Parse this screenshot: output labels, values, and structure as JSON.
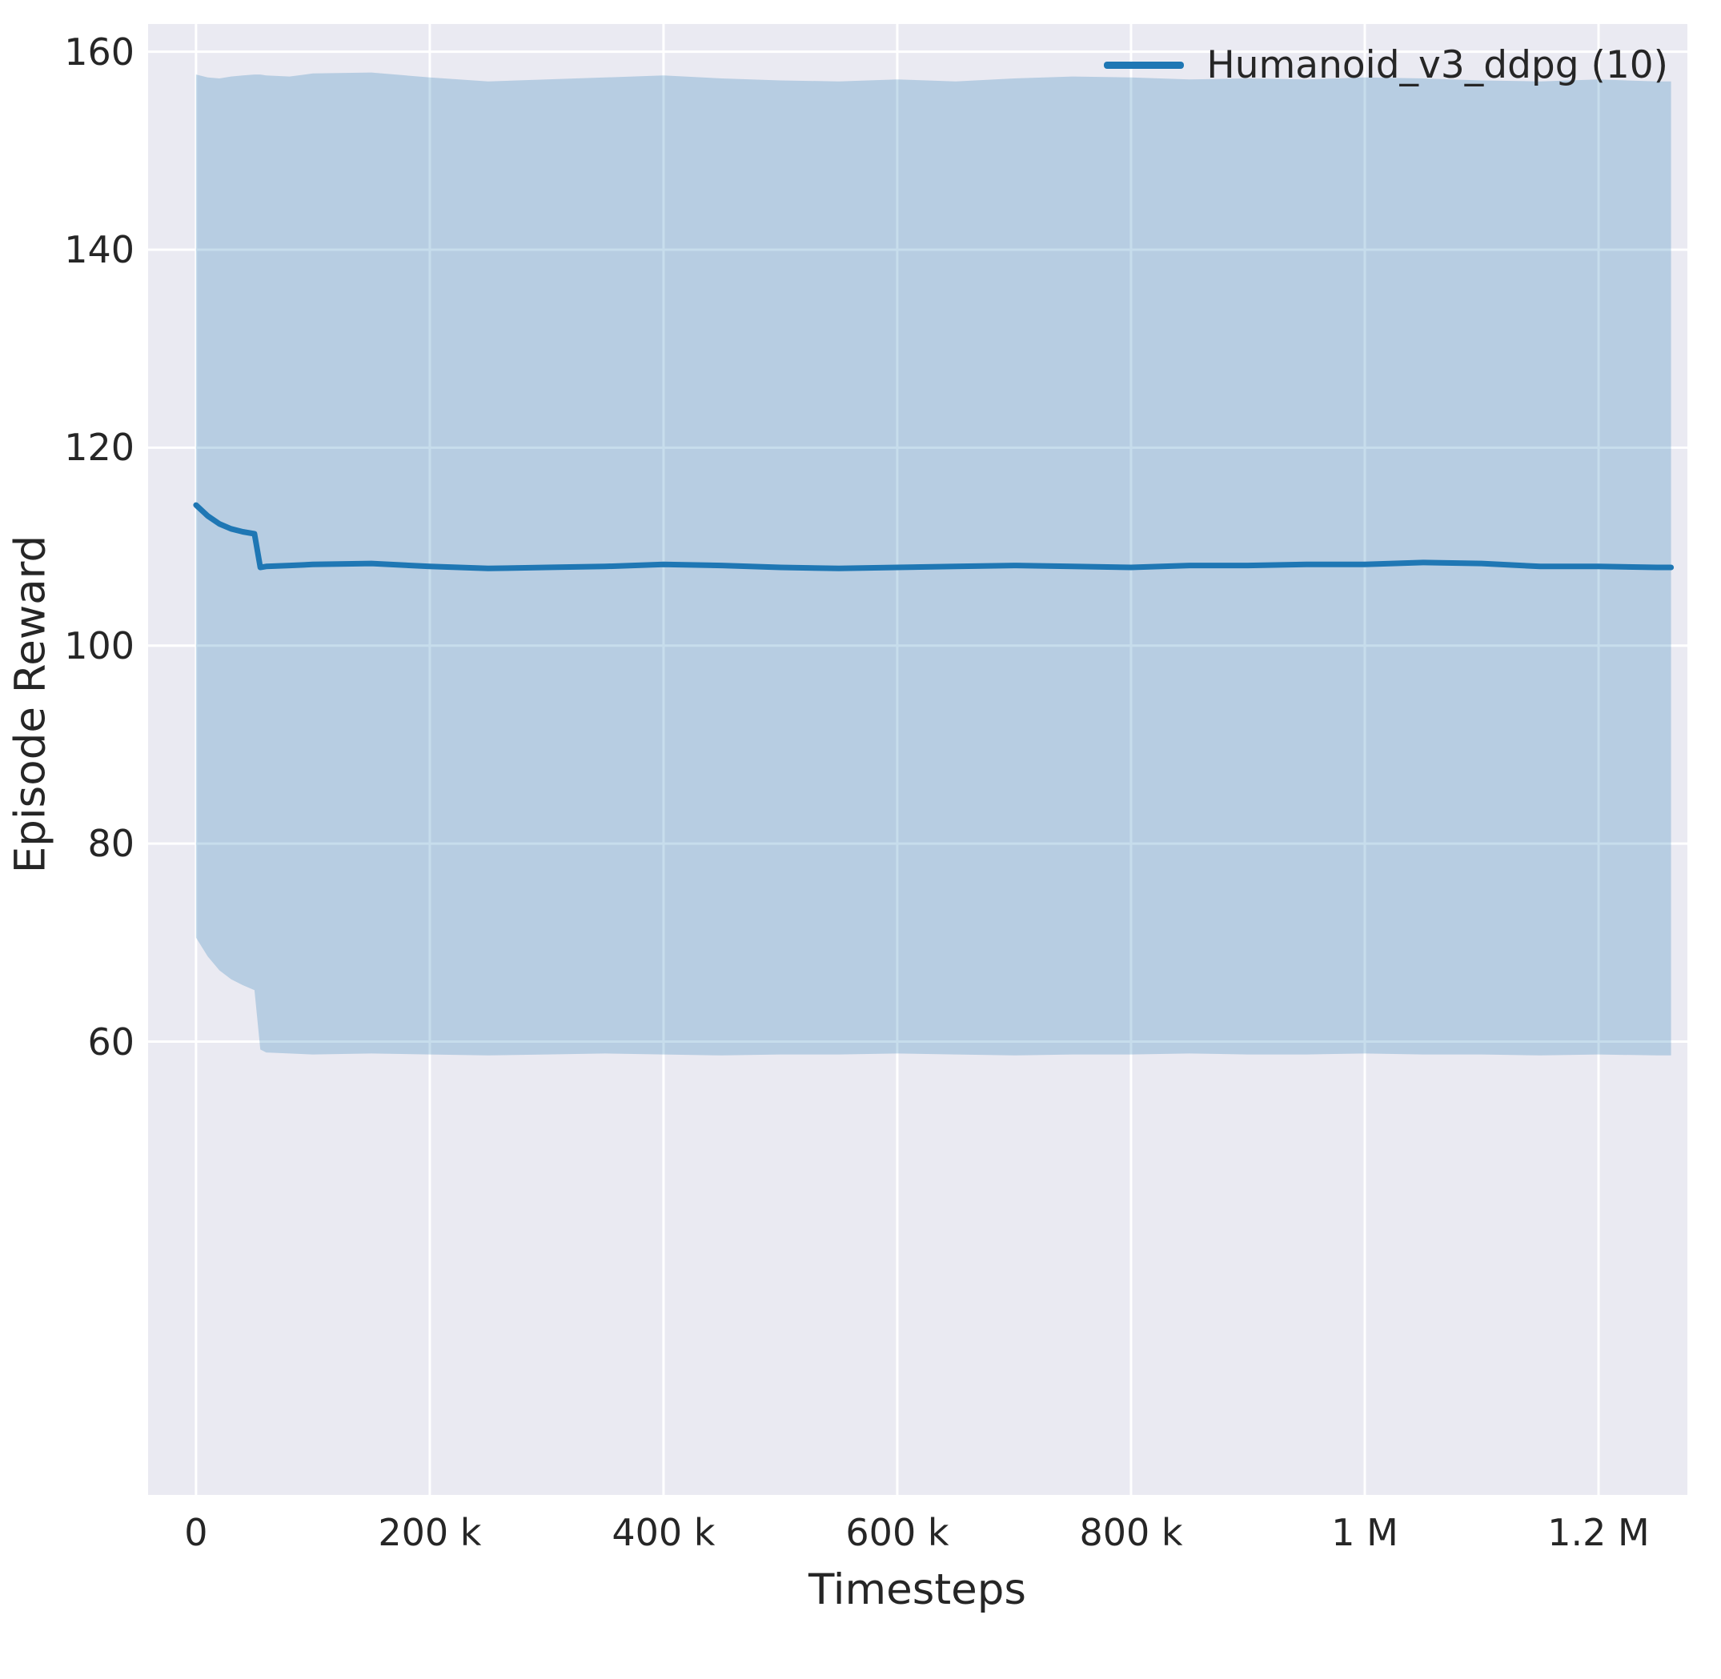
{
  "chart_data": {
    "type": "line",
    "title": "",
    "xlabel": "Timesteps",
    "ylabel": "Episode Reward",
    "grid": true,
    "legend_position": "upper right",
    "xlim": [
      -41000,
      1276000
    ],
    "ylim": [
      14.2,
      162.8
    ],
    "x_ticks": [
      {
        "value": 0,
        "label": "0"
      },
      {
        "value": 200000,
        "label": "200 k"
      },
      {
        "value": 400000,
        "label": "400 k"
      },
      {
        "value": 600000,
        "label": "600 k"
      },
      {
        "value": 800000,
        "label": "800 k"
      },
      {
        "value": 1000000,
        "label": "1 M"
      },
      {
        "value": 1200000,
        "label": "1.2 M"
      }
    ],
    "y_ticks": [
      {
        "value": 60,
        "label": "60"
      },
      {
        "value": 80,
        "label": "80"
      },
      {
        "value": 100,
        "label": "100"
      },
      {
        "value": 120,
        "label": "120"
      },
      {
        "value": 140,
        "label": "140"
      },
      {
        "value": 160,
        "label": "160"
      }
    ],
    "colors": {
      "line": "#1f77b4",
      "band": "#1f77b4",
      "band_opacity": 0.25,
      "plot_bg": "#eaeaf2",
      "grid": "#ffffff",
      "text": "#262626"
    },
    "series": [
      {
        "name": "Humanoid_v3_ddpg (10)",
        "color": "#1f77b4",
        "x": [
          0,
          10000,
          20000,
          30000,
          40000,
          50000,
          55000,
          60000,
          80000,
          100000,
          150000,
          200000,
          250000,
          300000,
          350000,
          400000,
          450000,
          500000,
          550000,
          600000,
          650000,
          700000,
          750000,
          800000,
          850000,
          900000,
          950000,
          1000000,
          1050000,
          1100000,
          1150000,
          1200000,
          1250000,
          1262000
        ],
        "mean": [
          114.2,
          113.1,
          112.3,
          111.8,
          111.5,
          111.3,
          107.9,
          108.0,
          108.1,
          108.2,
          108.3,
          108.0,
          107.8,
          107.9,
          108.0,
          108.2,
          108.1,
          107.9,
          107.8,
          107.9,
          108.0,
          108.1,
          108.0,
          107.9,
          108.1,
          108.1,
          108.2,
          108.2,
          108.4,
          108.3,
          108.0,
          108.0,
          107.9,
          107.9
        ],
        "band_upper": [
          157.7,
          157.4,
          157.3,
          157.5,
          157.6,
          157.7,
          157.7,
          157.6,
          157.5,
          157.8,
          157.9,
          157.4,
          157.0,
          157.2,
          157.4,
          157.6,
          157.3,
          157.1,
          157.0,
          157.2,
          157.0,
          157.3,
          157.5,
          157.4,
          157.2,
          157.3,
          157.2,
          157.4,
          157.3,
          157.1,
          157.0,
          157.2,
          157.0,
          157.0
        ],
        "band_lower": [
          70.5,
          68.6,
          67.2,
          66.3,
          65.7,
          65.2,
          59.2,
          58.9,
          58.8,
          58.7,
          58.8,
          58.7,
          58.6,
          58.7,
          58.8,
          58.7,
          58.6,
          58.7,
          58.7,
          58.8,
          58.7,
          58.6,
          58.7,
          58.7,
          58.8,
          58.7,
          58.7,
          58.8,
          58.7,
          58.7,
          58.6,
          58.7,
          58.6,
          58.6
        ]
      }
    ]
  }
}
